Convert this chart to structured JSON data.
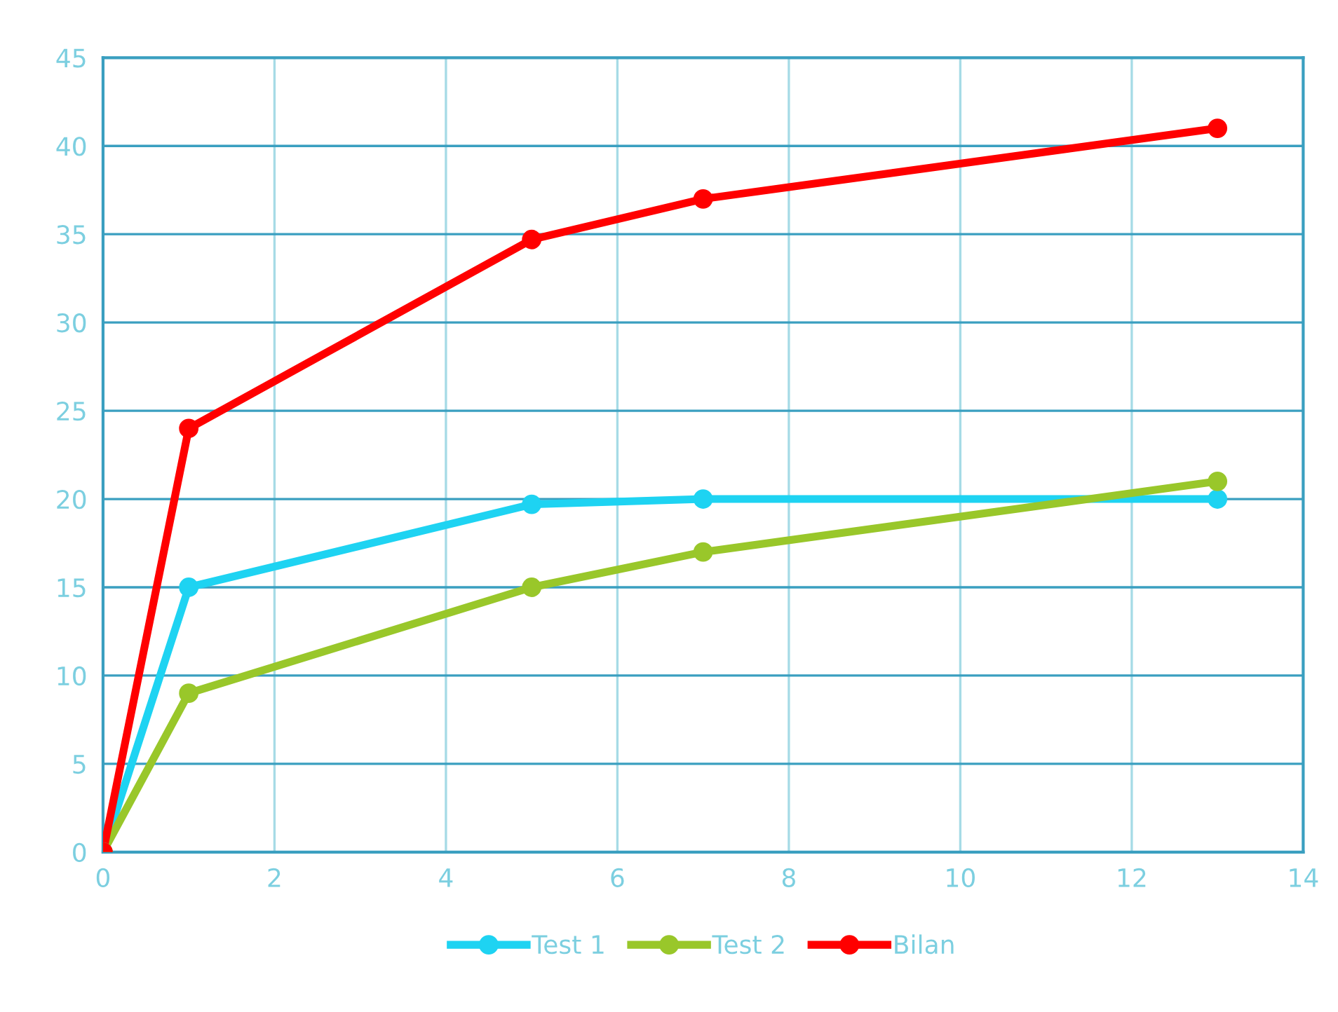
{
  "chart_data": {
    "type": "line",
    "xlim": [
      0,
      14
    ],
    "xticks": [
      0,
      2,
      4,
      6,
      8,
      10,
      12,
      14
    ],
    "ylim": [
      0,
      45
    ],
    "yticks": [
      0,
      5,
      10,
      15,
      20,
      25,
      30,
      35,
      40,
      45
    ],
    "grid": true,
    "legend": "bottom",
    "marker": "circle",
    "line_style": "solid",
    "x": [
      0,
      1,
      5,
      7,
      13
    ],
    "series": [
      {
        "name": "Test 1",
        "color": "#1ed3f2",
        "values": [
          0,
          15,
          19.7,
          20,
          20
        ]
      },
      {
        "name": "Test 2",
        "color": "#99c72a",
        "values": [
          0,
          9,
          15,
          17,
          21
        ]
      },
      {
        "name": "Bilan",
        "color": "#ff0000",
        "values": [
          0,
          24,
          34.7,
          37,
          41
        ]
      }
    ]
  }
}
